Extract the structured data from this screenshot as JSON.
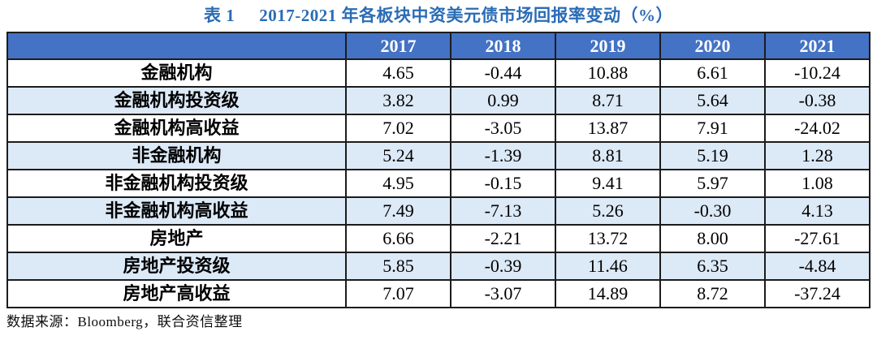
{
  "title": {
    "label": "表 1",
    "text": "2017-2021 年各板块中资美元债市场回报率变动（%）"
  },
  "chart_data": {
    "type": "table",
    "columns": [
      "",
      "2017",
      "2018",
      "2019",
      "2020",
      "2021"
    ],
    "rows": [
      {
        "label": "金融机构",
        "values": [
          "4.65",
          "-0.44",
          "10.88",
          "6.61",
          "-10.24"
        ]
      },
      {
        "label": "金融机构投资级",
        "values": [
          "3.82",
          "0.99",
          "8.71",
          "5.64",
          "-0.38"
        ]
      },
      {
        "label": "金融机构高收益",
        "values": [
          "7.02",
          "-3.05",
          "13.87",
          "7.91",
          "-24.02"
        ]
      },
      {
        "label": "非金融机构",
        "values": [
          "5.24",
          "-1.39",
          "8.81",
          "5.19",
          "1.28"
        ]
      },
      {
        "label": "非金融机构投资级",
        "values": [
          "4.95",
          "-0.15",
          "9.41",
          "5.97",
          "1.08"
        ]
      },
      {
        "label": "非金融机构高收益",
        "values": [
          "7.49",
          "-7.13",
          "5.26",
          "-0.30",
          "4.13"
        ]
      },
      {
        "label": "房地产",
        "values": [
          "6.66",
          "-2.21",
          "13.72",
          "8.00",
          "-27.61"
        ]
      },
      {
        "label": "房地产投资级",
        "values": [
          "5.85",
          "-0.39",
          "11.46",
          "6.35",
          "-4.84"
        ]
      },
      {
        "label": "房地产高收益",
        "values": [
          "7.07",
          "-3.07",
          "14.89",
          "8.72",
          "-37.24"
        ]
      }
    ],
    "title": "表 1 2017-2021 年各板块中资美元债市场回报率变动（%）",
    "colors": {
      "header_bg": "#4472c4",
      "header_text": "#ffffff",
      "alt_row_bg": "#dce9f7",
      "title_text": "#2a6cb5",
      "border": "#1c1c1c"
    }
  },
  "footer": {
    "source": "数据来源：Bloomberg，联合资信整理"
  }
}
